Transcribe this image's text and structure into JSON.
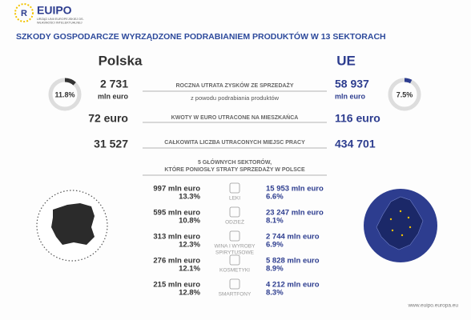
{
  "header": {
    "logo": "EUIPO",
    "logo_subtitle": [
      "URZĄD UNII EUROPEJSKIEJ DS.",
      "WŁASNOŚCI INTELEKTUALNEJ"
    ],
    "title": "SZKODY GOSPODARCZE WYRZĄDZONE PODRABIANIEM PRODUKTÓW W 13 SEKTORACH"
  },
  "columns": {
    "left": "Polska",
    "right": "UE"
  },
  "shares": [
    {
      "value": 11.8,
      "label": "11.8%"
    },
    {
      "value": 7.5,
      "label": "7.5%"
    }
  ],
  "metrics": [
    {
      "left": "2 731",
      "left_unit": "mln euro",
      "label": "ROCZNA UTRATA ZYSKÓW ZE SPRZEDAŻY",
      "sublabel": "z powodu podrabiania produktów",
      "right": "58 937",
      "right_unit": "mln euro"
    },
    {
      "left": "72 euro",
      "label": "KWOTY W EURO UTRACONE NA MIESZKAŃCA",
      "right": "116 euro"
    },
    {
      "left": "31 527",
      "label": "CAŁKOWITA LICZBA UTRACONYCH MIEJSC PRACY",
      "right": "434 701"
    }
  ],
  "sectors_title": [
    "5 GŁÓWNYCH SEKTORÓW,",
    "KTÓRE PONIOSŁY STRATY SPRZEDAŻY W POLSCE"
  ],
  "sectors": [
    {
      "name": [
        "LEKI"
      ],
      "pl_value": "997 mln euro",
      "pl_share": "13.3%",
      "eu_value": "15 953 mln euro",
      "eu_share": "6.6%"
    },
    {
      "name": [
        "ODZIEŻ"
      ],
      "pl_value": "595 mln euro",
      "pl_share": "10.8%",
      "eu_value": "23 247 mln euro",
      "eu_share": "8.1%"
    },
    {
      "name": [
        "WINA I WYROBY",
        "SPIRYTUSOWE"
      ],
      "pl_value": "313 mln euro",
      "pl_share": "12.3%",
      "eu_value": "2 744 mln euro",
      "eu_share": "6.9%"
    },
    {
      "name": [
        "KOSMETYKI"
      ],
      "pl_value": "276 mln euro",
      "pl_share": "12.1%",
      "eu_value": "5 828 mln euro",
      "eu_share": "8.9%"
    },
    {
      "name": [
        "SMARTFONY"
      ],
      "pl_value": "215 mln euro",
      "pl_share": "12.8%",
      "eu_value": "4 212 mln euro",
      "eu_share": "8.3%"
    }
  ],
  "footer": "www.euipo.europa.eu"
}
